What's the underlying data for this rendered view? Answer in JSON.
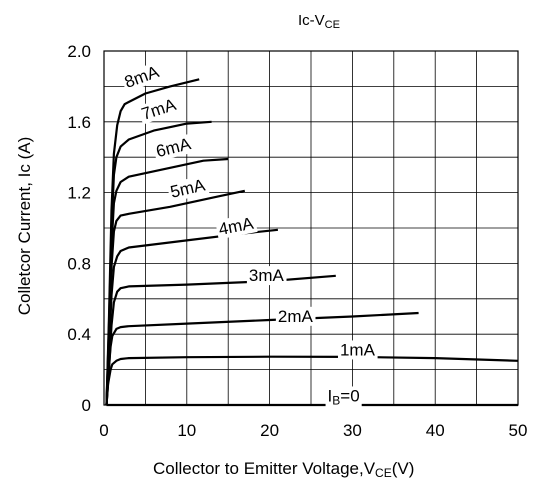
{
  "chart_data": {
    "type": "line",
    "title": "Ic-V",
    "title_sub": "CE",
    "xlabel": "Collector to Emitter Voltage,V",
    "xlabel_sub": "CE",
    "xlabel_unit": "(V)",
    "ylabel": "Colletcor Current, Ic (A)",
    "xlim": [
      0,
      50
    ],
    "ylim": [
      0,
      2.0
    ],
    "x_ticks": [
      0,
      10,
      20,
      30,
      40,
      50
    ],
    "x_tick_labels": [
      "0",
      "10",
      "20",
      "30",
      "40",
      "50"
    ],
    "y_ticks": [
      0,
      0.4,
      0.8,
      1.2,
      1.6,
      2.0
    ],
    "y_tick_labels": [
      "0",
      "0.4",
      "0.8",
      "1.2",
      "1.6",
      "2.0"
    ],
    "x_grid_step": 5,
    "y_grid_step": 0.2,
    "grid": true,
    "series": [
      {
        "name": "I",
        "name_sub": "B",
        "name_suffix": "=0",
        "x": [
          0.3,
          50
        ],
        "y": [
          0.0,
          0.0
        ]
      },
      {
        "name": "1mA",
        "x": [
          0.3,
          0.5,
          0.8,
          1.0,
          1.5,
          2.0,
          3.0,
          10,
          20,
          30,
          40,
          50
        ],
        "y": [
          0.0,
          0.12,
          0.2,
          0.23,
          0.25,
          0.26,
          0.265,
          0.27,
          0.273,
          0.272,
          0.265,
          0.25
        ]
      },
      {
        "name": "2mA",
        "x": [
          0.3,
          0.5,
          0.8,
          1.0,
          1.5,
          2.0,
          3.0,
          10,
          20,
          30,
          38
        ],
        "y": [
          0.0,
          0.15,
          0.33,
          0.39,
          0.43,
          0.44,
          0.445,
          0.46,
          0.48,
          0.5,
          0.52
        ]
      },
      {
        "name": "3mA",
        "x": [
          0.3,
          0.6,
          0.9,
          1.2,
          1.6,
          2.0,
          3.0,
          10,
          20,
          28
        ],
        "y": [
          0.0,
          0.2,
          0.45,
          0.58,
          0.64,
          0.66,
          0.67,
          0.68,
          0.7,
          0.73
        ]
      },
      {
        "name": "4mA",
        "x": [
          0.3,
          0.6,
          0.9,
          1.2,
          1.6,
          2.0,
          3.0,
          10,
          17,
          21
        ],
        "y": [
          0.0,
          0.3,
          0.62,
          0.78,
          0.84,
          0.87,
          0.89,
          0.93,
          0.97,
          0.99
        ]
      },
      {
        "name": "5mA",
        "x": [
          0.3,
          0.6,
          0.9,
          1.2,
          1.5,
          2.0,
          3.0,
          8,
          14,
          17
        ],
        "y": [
          0.0,
          0.35,
          0.78,
          0.98,
          1.04,
          1.07,
          1.08,
          1.12,
          1.18,
          1.21
        ]
      },
      {
        "name": "6mA",
        "x": [
          0.3,
          0.6,
          0.9,
          1.2,
          1.5,
          2.0,
          3.0,
          8,
          12,
          15
        ],
        "y": [
          0.0,
          0.4,
          0.9,
          1.14,
          1.21,
          1.26,
          1.29,
          1.34,
          1.38,
          1.39
        ]
      },
      {
        "name": "7mA",
        "x": [
          0.3,
          0.6,
          0.9,
          1.2,
          1.5,
          2.0,
          3.0,
          6,
          10,
          13
        ],
        "y": [
          0.0,
          0.45,
          1.0,
          1.3,
          1.4,
          1.46,
          1.5,
          1.55,
          1.59,
          1.6
        ]
      },
      {
        "name": "8mA",
        "x": [
          0.3,
          0.6,
          0.9,
          1.2,
          1.6,
          2.0,
          2.5,
          5,
          8,
          11.5
        ],
        "y": [
          0.0,
          0.5,
          1.1,
          1.42,
          1.58,
          1.66,
          1.7,
          1.76,
          1.8,
          1.84
        ]
      }
    ],
    "line_color": "#000000",
    "grid_color": "#000000"
  }
}
